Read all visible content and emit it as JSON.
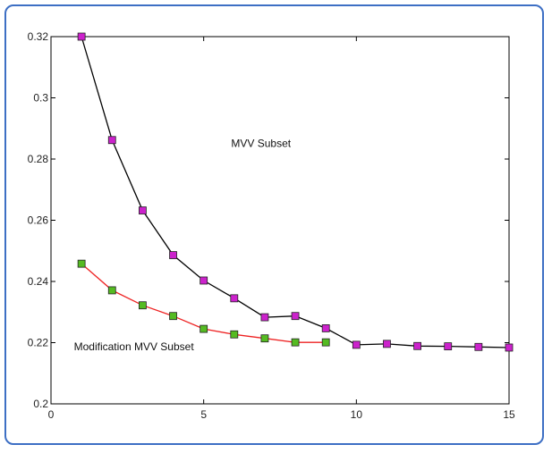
{
  "chart_data": {
    "type": "line",
    "title": "",
    "xlabel": "",
    "ylabel": "",
    "xlim": [
      0,
      15
    ],
    "ylim": [
      0.2,
      0.32
    ],
    "xticks": [
      0,
      5,
      10,
      15
    ],
    "yticks": [
      0.2,
      0.22,
      0.24,
      0.26,
      0.28,
      0.3,
      0.32
    ],
    "xtick_labels": [
      "0",
      "5",
      "10",
      "15"
    ],
    "ytick_labels": [
      "0.2",
      "0.22",
      "0.24",
      "0.26",
      "0.28",
      "0.3",
      "0.32"
    ],
    "grid": false,
    "series": [
      {
        "name": "MVV Subset",
        "color": "#000000",
        "marker_color": "#cc22cc",
        "marker": "square",
        "x": [
          1,
          2,
          3,
          4,
          5,
          6,
          7,
          8,
          9,
          10,
          11,
          12,
          13,
          14,
          15
        ],
        "y": [
          0.32,
          0.2862,
          0.2632,
          0.2486,
          0.2403,
          0.2345,
          0.2283,
          0.2287,
          0.2247,
          0.2193,
          0.2196,
          0.2189,
          0.2188,
          0.2186,
          0.2184
        ]
      },
      {
        "name": "Modification MVV Subset",
        "color": "#ee2222",
        "marker_color": "#55bb22",
        "marker": "square",
        "x": [
          1,
          2,
          3,
          4,
          5,
          6,
          7,
          8,
          9
        ],
        "y": [
          0.2458,
          0.2371,
          0.2322,
          0.2287,
          0.2245,
          0.2227,
          0.2214,
          0.2201,
          0.2201
        ]
      }
    ],
    "annotations": [
      {
        "text": "MVV Subset",
        "x": 5.9,
        "y": 0.284
      },
      {
        "text": "Modification MVV Subset",
        "x": 0.75,
        "y": 0.2175
      }
    ]
  }
}
